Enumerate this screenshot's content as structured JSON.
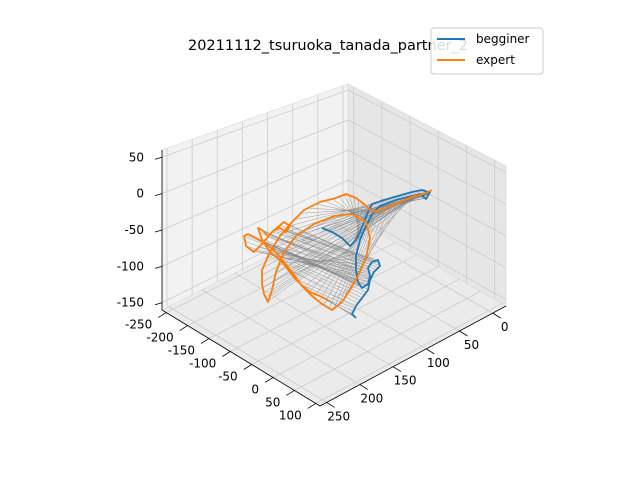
{
  "chart_data": {
    "type": "line3d",
    "title": "20211112_tsuruoka_tanada_partner_2",
    "legend_placement": "top-right",
    "grid": true,
    "colors": {
      "begginer": "#1f77b4",
      "expert": "#ff7f0e",
      "connectors": "#808080"
    },
    "axes": {
      "x": {
        "ticks": [
          -250,
          -200,
          -150,
          -100,
          -50,
          0,
          50,
          100
        ],
        "range": [
          -260,
          110
        ]
      },
      "y": {
        "ticks": [
          0,
          50,
          100,
          150,
          200,
          250
        ],
        "range": [
          -20,
          260
        ]
      },
      "z": {
        "ticks": [
          50,
          0,
          -50,
          -100,
          -150
        ],
        "range": [
          -160,
          60
        ]
      }
    },
    "series": [
      {
        "name": "begginer",
        "color": "#1f77b4"
      },
      {
        "name": "expert",
        "color": "#ff7f0e"
      }
    ],
    "screen_traces": {
      "begginer": [
        [
          322,
          228
        ],
        [
          332,
          232
        ],
        [
          342,
          238
        ],
        [
          350,
          246
        ],
        [
          356,
          240
        ],
        [
          360,
          232
        ],
        [
          364,
          222
        ],
        [
          368,
          212
        ],
        [
          372,
          204
        ],
        [
          384,
          200
        ],
        [
          398,
          196
        ],
        [
          412,
          192
        ],
        [
          422,
          190
        ],
        [
          428,
          192
        ],
        [
          422,
          196
        ],
        [
          430,
          192
        ],
        [
          426,
          199
        ],
        [
          420,
          194
        ],
        [
          412,
          196
        ],
        [
          396,
          200
        ],
        [
          380,
          206
        ],
        [
          372,
          214
        ],
        [
          366,
          226
        ],
        [
          360,
          240
        ],
        [
          356,
          256
        ],
        [
          356,
          270
        ],
        [
          358,
          282
        ],
        [
          362,
          288
        ],
        [
          368,
          284
        ],
        [
          370,
          276
        ],
        [
          368,
          268
        ],
        [
          372,
          262
        ],
        [
          378,
          260
        ],
        [
          380,
          266
        ],
        [
          374,
          272
        ],
        [
          370,
          280
        ],
        [
          368,
          290
        ],
        [
          362,
          298
        ],
        [
          356,
          306
        ],
        [
          352,
          314
        ],
        [
          356,
          318
        ]
      ],
      "expert": [
        [
          432,
          190
        ],
        [
          424,
          194
        ],
        [
          414,
          196
        ],
        [
          400,
          202
        ],
        [
          386,
          208
        ],
        [
          372,
          212
        ],
        [
          364,
          204
        ],
        [
          356,
          198
        ],
        [
          346,
          194
        ],
        [
          336,
          198
        ],
        [
          320,
          202
        ],
        [
          304,
          210
        ],
        [
          292,
          222
        ],
        [
          280,
          236
        ],
        [
          270,
          252
        ],
        [
          262,
          270
        ],
        [
          262,
          284
        ],
        [
          264,
          294
        ],
        [
          268,
          302
        ],
        [
          272,
          290
        ],
        [
          276,
          272
        ],
        [
          284,
          252
        ],
        [
          296,
          236
        ],
        [
          314,
          224
        ],
        [
          334,
          216
        ],
        [
          352,
          214
        ],
        [
          366,
          222
        ],
        [
          370,
          238
        ],
        [
          366,
          258
        ],
        [
          358,
          276
        ],
        [
          350,
          290
        ],
        [
          342,
          302
        ],
        [
          332,
          310
        ],
        [
          322,
          304
        ],
        [
          312,
          296
        ],
        [
          302,
          286
        ],
        [
          292,
          272
        ],
        [
          284,
          262
        ],
        [
          276,
          252
        ],
        [
          266,
          244
        ],
        [
          256,
          238
        ],
        [
          248,
          234
        ],
        [
          244,
          236
        ],
        [
          246,
          246
        ],
        [
          254,
          252
        ],
        [
          262,
          244
        ],
        [
          272,
          232
        ],
        [
          284,
          222
        ],
        [
          290,
          226
        ],
        [
          286,
          232
        ],
        [
          280,
          228
        ],
        [
          274,
          230
        ],
        [
          268,
          236
        ],
        [
          262,
          230
        ],
        [
          258,
          228
        ],
        [
          262,
          240
        ],
        [
          270,
          252
        ],
        [
          282,
          262
        ],
        [
          296,
          280
        ],
        [
          310,
          292
        ],
        [
          320,
          296
        ],
        [
          328,
          300
        ]
      ]
    },
    "legend": {
      "items": [
        "begginer",
        "expert"
      ]
    }
  }
}
